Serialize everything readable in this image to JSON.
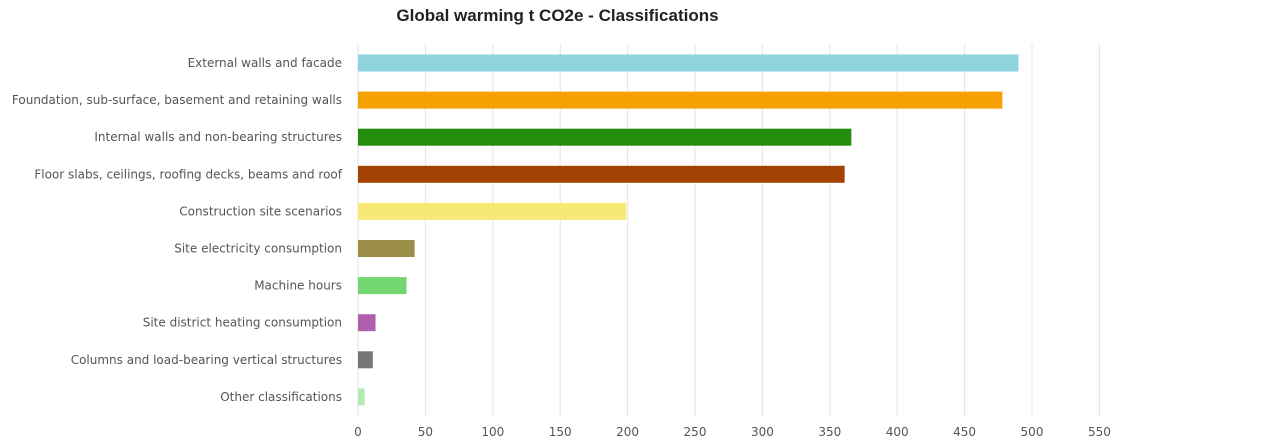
{
  "chart_data": {
    "type": "bar",
    "orientation": "horizontal",
    "title": "Global warming t CO2e - Classifications",
    "xlabel": "",
    "ylabel": "",
    "xlim": [
      0,
      550
    ],
    "x_ticks": [
      "0",
      "50",
      "100",
      "150",
      "200",
      "250",
      "300",
      "350",
      "400",
      "450",
      "500",
      "550"
    ],
    "grid": "vertical",
    "legend": "none",
    "categories": [
      "External walls and facade",
      "Foundation, sub-surface, basement and retaining walls",
      "Internal walls and non-bearing structures",
      "Floor slabs, ceilings, roofing decks, beams and roof",
      "Construction site scenarios",
      "Site electricity consumption",
      "Machine hours",
      "Site district heating consumption",
      "Columns and load-bearing vertical structures",
      "Other classifications"
    ],
    "values": [
      490,
      478,
      366,
      361,
      199,
      42,
      36,
      13,
      11,
      5
    ],
    "colors": [
      "#8fd4dc",
      "#f6a100",
      "#238e0e",
      "#a24303",
      "#f8e976",
      "#9a8e4a",
      "#74d672",
      "#ae5eac",
      "#767676",
      "#b4ebb0"
    ]
  }
}
